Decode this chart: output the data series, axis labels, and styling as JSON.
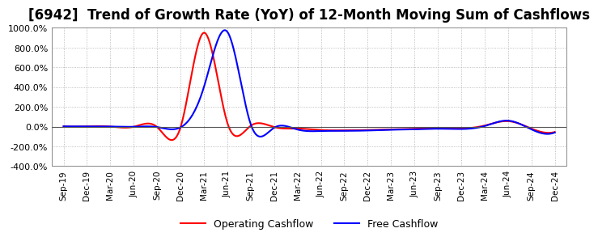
{
  "title": "[6942]  Trend of Growth Rate (YoY) of 12-Month Moving Sum of Cashflows",
  "title_fontsize": 12,
  "ylim": [
    -400,
    1000
  ],
  "yticks": [
    -400,
    -200,
    0,
    200,
    400,
    600,
    800,
    1000
  ],
  "background_color": "#ffffff",
  "grid_color": "#aaaaaa",
  "operating_color": "#ff0000",
  "free_color": "#0000ff",
  "legend_labels": [
    "Operating Cashflow",
    "Free Cashflow"
  ],
  "x_labels": [
    "Sep-19",
    "Dec-19",
    "Mar-20",
    "Jun-20",
    "Sep-20",
    "Dec-20",
    "Mar-21",
    "Jun-21",
    "Sep-21",
    "Dec-21",
    "Mar-22",
    "Jun-22",
    "Sep-22",
    "Dec-22",
    "Mar-23",
    "Jun-23",
    "Sep-23",
    "Dec-23",
    "Mar-24",
    "Jun-24",
    "Sep-24",
    "Dec-24"
  ],
  "operating_cashflow": [
    2,
    2,
    0,
    -2,
    -5,
    -8,
    950,
    40,
    8,
    -5,
    -20,
    -35,
    -38,
    -35,
    -28,
    -22,
    -18,
    -20,
    10,
    55,
    -20,
    -55
  ],
  "free_cashflow": [
    2,
    2,
    0,
    -2,
    -5,
    -8,
    400,
    960,
    25,
    -12,
    -30,
    -45,
    -43,
    -40,
    -32,
    -28,
    -22,
    -25,
    5,
    60,
    -28,
    -60
  ]
}
